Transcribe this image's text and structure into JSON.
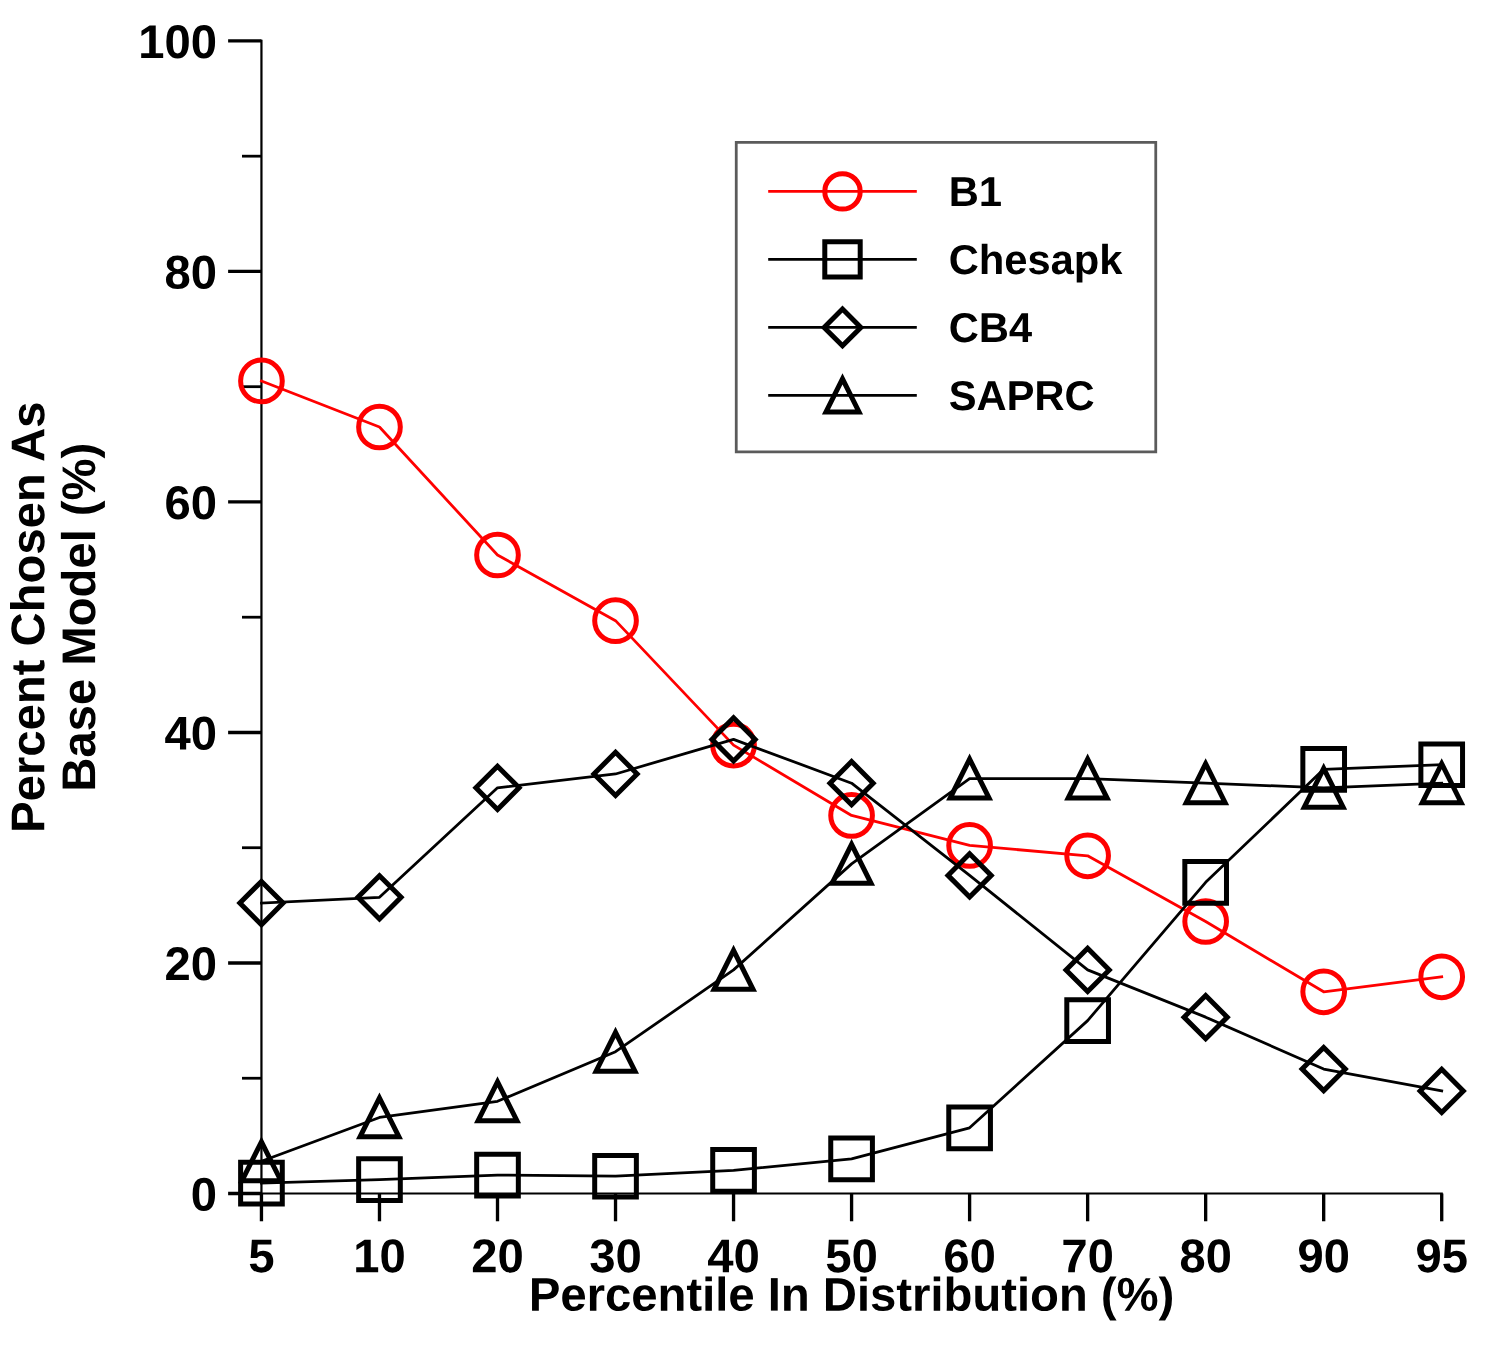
{
  "chart_data": {
    "type": "line",
    "xlabel": "Percentile In Distribution (%)",
    "ylabel": "Percent Chosen As\nBase Model (%)",
    "categories": [
      "5",
      "10",
      "20",
      "30",
      "40",
      "50",
      "60",
      "70",
      "80",
      "90",
      "95"
    ],
    "ylim": [
      0,
      100
    ],
    "yticks": [
      0,
      20,
      40,
      60,
      80,
      100,
      {
        "value": 10,
        "label": null
      },
      {
        "value": 30,
        "label": null
      },
      {
        "value": 50,
        "label": null
      },
      {
        "value": 70,
        "label": null
      },
      {
        "value": 90,
        "label": null
      }
    ],
    "grid": false,
    "legend": "top",
    "line_style": "solid",
    "series": [
      {
        "name": "B1",
        "color": "#ff0000",
        "marker": "circle",
        "values": [
          70.5,
          66.5,
          55.4,
          49.7,
          38.9,
          32.8,
          30.2,
          29.3,
          23.6,
          17.5,
          18.8
        ]
      },
      {
        "name": "Chesapk",
        "color": "#000000",
        "marker": "square",
        "values": [
          0.9,
          1.2,
          1.6,
          1.5,
          2.0,
          3.0,
          5.7,
          15.0,
          27.0,
          36.8,
          37.2
        ]
      },
      {
        "name": "CB4",
        "color": "#000000",
        "marker": "diamond",
        "values": [
          25.2,
          25.7,
          35.2,
          36.4,
          39.4,
          35.6,
          27.6,
          19.4,
          15.3,
          10.8,
          8.9
        ]
      },
      {
        "name": "SAPRC",
        "color": "#000000",
        "marker": "triangle",
        "values": [
          2.8,
          6.6,
          8.0,
          12.3,
          19.4,
          28.6,
          36.0,
          36.0,
          35.6,
          35.2,
          35.6
        ]
      }
    ]
  }
}
